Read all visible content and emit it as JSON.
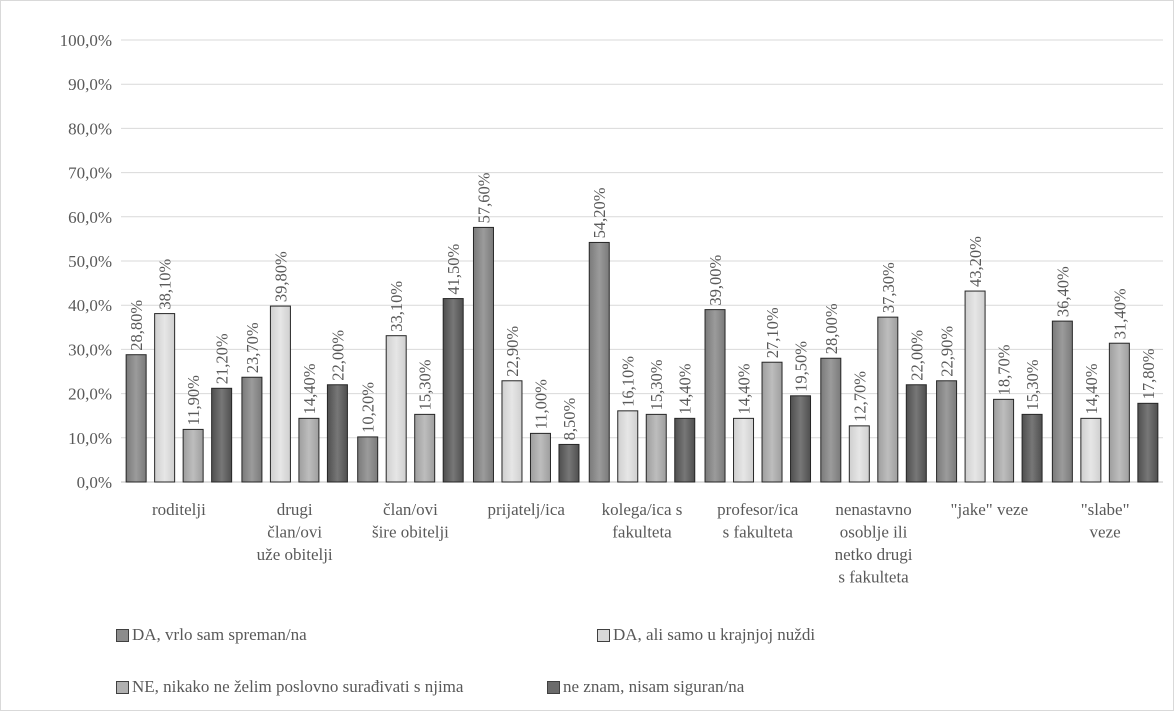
{
  "chart_data": {
    "type": "bar",
    "categories": [
      [
        "roditelji"
      ],
      [
        "drugi",
        "član/ovi",
        "uže obitelji"
      ],
      [
        "član/ovi",
        "šire obitelji"
      ],
      [
        "prijatelj/ica"
      ],
      [
        "kolega/ica s",
        "fakulteta"
      ],
      [
        "profesor/ica",
        "s fakulteta"
      ],
      [
        "nenastavno",
        "osoblje ili",
        "netko drugi",
        "s fakulteta"
      ],
      [
        "\"jake\" veze"
      ],
      [
        "\"slabe\"",
        "veze"
      ]
    ],
    "series": [
      {
        "name": "DA, vrlo sam spreman/na",
        "color": "#8c8c8c",
        "values": [
          28.8,
          23.7,
          10.2,
          57.6,
          54.2,
          39.0,
          28.0,
          22.9,
          36.4
        ],
        "labels": [
          "28,80%",
          "23,70%",
          "10,20%",
          "57,60%",
          "54,20%",
          "39,00%",
          "28,00%",
          "22,90%",
          "36,40%"
        ]
      },
      {
        "name": "DA, ali samo u krajnjoj nuždi",
        "color": "#d9d9d9",
        "values": [
          38.1,
          39.8,
          33.1,
          22.9,
          16.1,
          14.4,
          12.7,
          43.2,
          14.4
        ],
        "labels": [
          "38,10%",
          "39,80%",
          "33,10%",
          "22,90%",
          "16,10%",
          "14,40%",
          "12,70%",
          "43,20%",
          "14,40%"
        ]
      },
      {
        "name": "NE, nikako ne želim poslovno surađivati s njima",
        "color": "#b0b0b0",
        "values": [
          11.9,
          14.4,
          15.3,
          11.0,
          15.3,
          27.1,
          37.3,
          18.7,
          31.4
        ],
        "labels": [
          "11,90%",
          "14,40%",
          "15,30%",
          "11,00%",
          "15,30%",
          "27,10%",
          "37,30%",
          "18,70%",
          "31,40%"
        ]
      },
      {
        "name": "ne znam, nisam siguran/na",
        "color": "#6b6b6b",
        "values": [
          21.2,
          22.0,
          41.5,
          8.5,
          14.4,
          19.5,
          22.0,
          15.3,
          17.8
        ],
        "labels": [
          "21,20%",
          "22,00%",
          "41,50%",
          "8,50%",
          "14,40%",
          "19,50%",
          "22,00%",
          "15,30%",
          "17,80%"
        ]
      }
    ],
    "yticks": [
      "0,0%",
      "10,0%",
      "20,0%",
      "30,0%",
      "40,0%",
      "50,0%",
      "60,0%",
      "70,0%",
      "80,0%",
      "90,0%",
      "100,0%"
    ],
    "ylim": [
      0,
      100
    ],
    "grid": true,
    "legend_position": "bottom"
  }
}
